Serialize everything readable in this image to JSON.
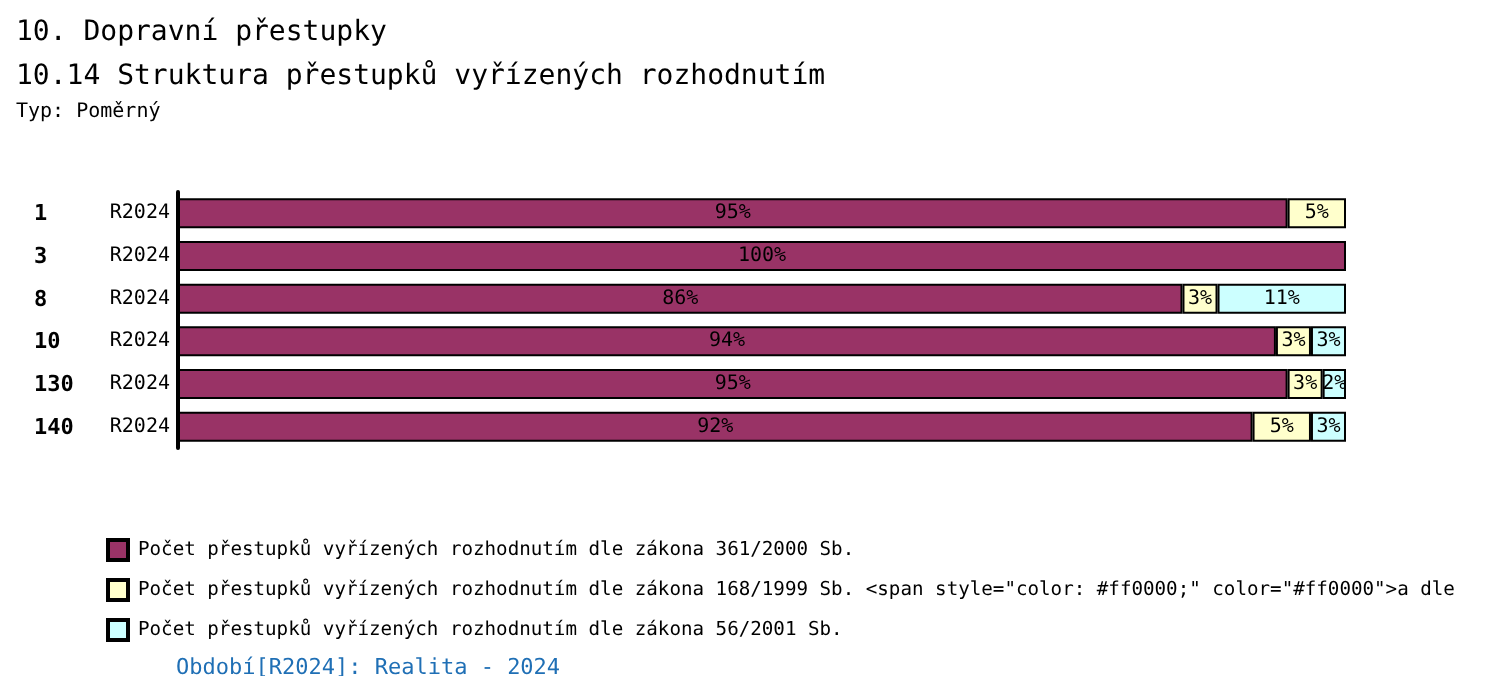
{
  "chart_data": {
    "type": "bar",
    "orientation": "horizontal",
    "stacked": true,
    "title": "10. Dopravní přestupky",
    "subtitle": "10.14 Struktura přestupků vyřízených rozhodnutím",
    "categories": [
      "1",
      "3",
      "8",
      "10",
      "130",
      "140"
    ],
    "series": [
      {
        "name": "Počet přestupků vyřízených rozhodnutím dle zákona 361/2000 Sb.",
        "color": "#993366",
        "values": [
          95,
          100,
          86,
          94,
          95,
          92
        ],
        "value_labels": [
          "95%",
          "100%",
          "86%",
          "94%",
          "95%",
          "92%"
        ]
      },
      {
        "name": "Počet přestupků vyřízených rozhodnutím dle zákona 168/1999 Sb. <span style=\"color: #ff0000;\" color=\"#ff0000\">a dle",
        "color": "#ffffcc",
        "values": [
          5,
          null,
          3,
          3,
          3,
          5
        ],
        "value_labels": [
          "5%",
          null,
          "3%",
          "3%",
          "3%",
          "5%"
        ]
      },
      {
        "name": "Počet přestupků vyřízených rozhodnutím dle zákona 56/2001 Sb.",
        "color": "#ccffff",
        "values": [
          null,
          null,
          11,
          3,
          2,
          3
        ],
        "value_labels": [
          null,
          null,
          "11%",
          "3%",
          "2%",
          "3%"
        ]
      }
    ],
    "annotations": [
      "Typ: Poměrný",
      "R2024",
      "R2024",
      "R2024",
      "R2024",
      "R2024",
      "R2024",
      "Období[R2024]: Realita - 2024"
    ],
    "legend": "bottom left"
  }
}
